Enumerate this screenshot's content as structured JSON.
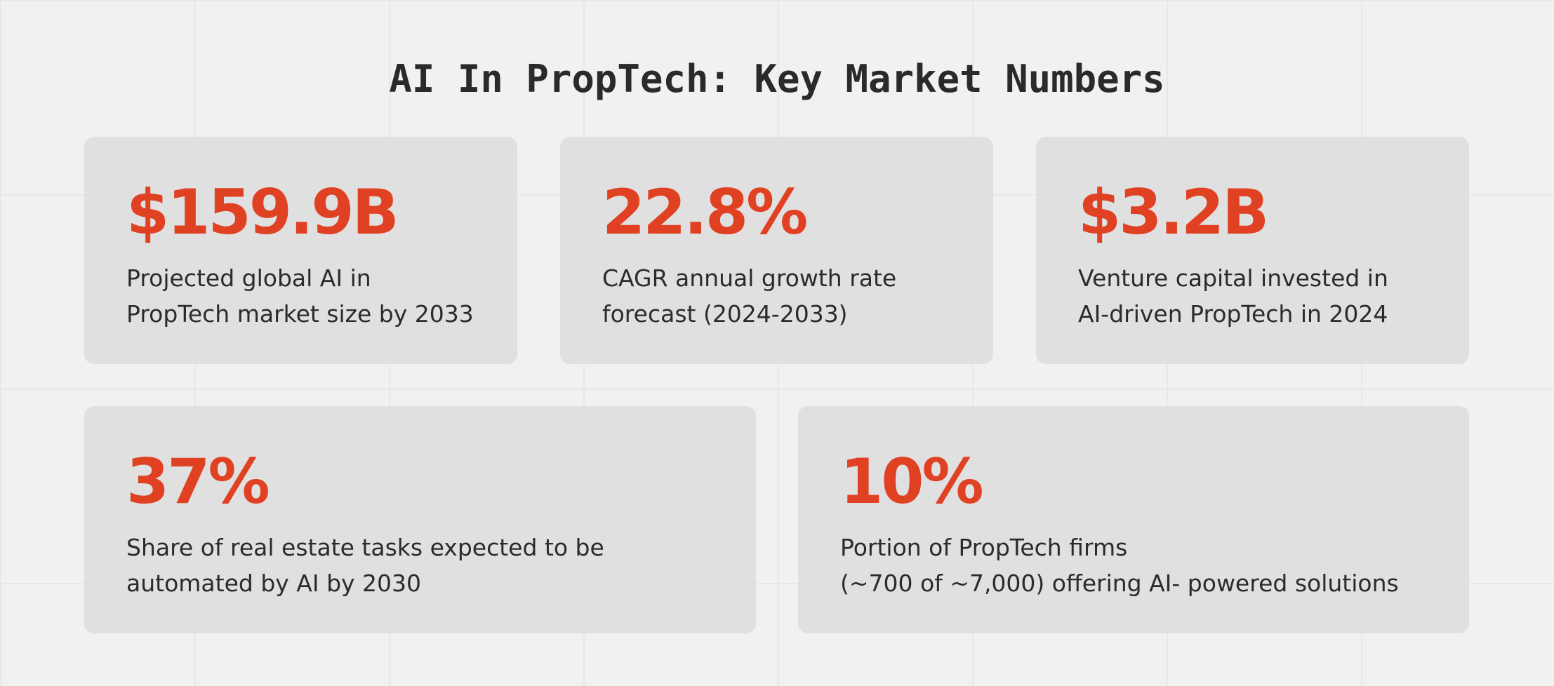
{
  "title": "AI In PropTech: Key Market Numbers",
  "accent_color": "#e04122",
  "cards": [
    {
      "value": "$159.9B",
      "desc_lines": [
        "Projected global AI in",
        "PropTech market size by 2033"
      ]
    },
    {
      "value": "22.8%",
      "desc_lines": [
        "CAGR annual growth rate",
        "forecast (2024-2033)"
      ]
    },
    {
      "value": "$3.2B",
      "desc_lines": [
        "Venture capital invested in",
        "AI-driven PropTech in 2024"
      ]
    },
    {
      "value": "37%",
      "desc_lines": [
        "Share of real estate tasks expected to be",
        "automated by AI by 2030"
      ]
    },
    {
      "value": "10%",
      "desc_lines": [
        "Portion of PropTech firms",
        "(~700 of ~7,000) offering AI- powered solutions"
      ]
    }
  ]
}
